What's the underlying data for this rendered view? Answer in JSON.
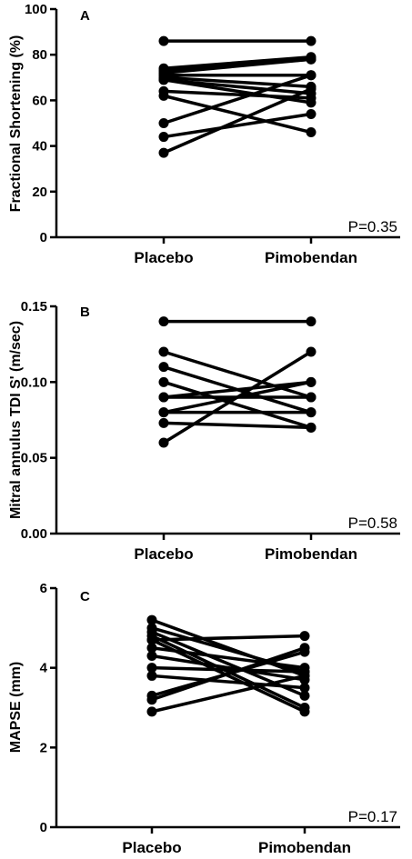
{
  "chart_data": [
    {
      "type": "line",
      "panel": "A",
      "ylabel": "Fractional Shortening (%)",
      "categories": [
        "Placebo",
        "Pimobendan"
      ],
      "ylim": [
        0,
        100
      ],
      "yticks": [
        "0",
        "20",
        "40",
        "60",
        "80",
        "100"
      ],
      "p_value": "P=0.35",
      "pairs": [
        [
          86,
          86
        ],
        [
          74,
          79
        ],
        [
          73,
          78
        ],
        [
          72,
          78
        ],
        [
          71,
          71
        ],
        [
          70,
          66
        ],
        [
          69,
          63
        ],
        [
          69,
          59
        ],
        [
          64,
          61
        ],
        [
          62,
          46
        ],
        [
          50,
          71
        ],
        [
          44,
          54
        ],
        [
          37,
          65
        ]
      ]
    },
    {
      "type": "line",
      "panel": "B",
      "ylabel": "Mitral annulus TDI S' (m/sec)",
      "categories": [
        "Placebo",
        "Pimobendan"
      ],
      "ylim": [
        0,
        0.15
      ],
      "yticks": [
        "0.00",
        "0.05",
        "0.10",
        "0.15"
      ],
      "p_value": "P=0.58",
      "pairs": [
        [
          0.14,
          0.14
        ],
        [
          0.12,
          0.09
        ],
        [
          0.11,
          0.08
        ],
        [
          0.1,
          0.07
        ],
        [
          0.09,
          0.1
        ],
        [
          0.09,
          0.09
        ],
        [
          0.08,
          0.1
        ],
        [
          0.08,
          0.08
        ],
        [
          0.073,
          0.07
        ],
        [
          0.06,
          0.12
        ]
      ]
    },
    {
      "type": "line",
      "panel": "C",
      "ylabel": "MAPSE (mm)",
      "categories": [
        "Placebo",
        "Pimobendan"
      ],
      "ylim": [
        0,
        6
      ],
      "yticks": [
        "0",
        "2",
        "4",
        "6"
      ],
      "p_value": "P=0.17",
      "pairs": [
        [
          5.2,
          3.8
        ],
        [
          5.0,
          3.9
        ],
        [
          4.9,
          3.3
        ],
        [
          4.8,
          3.0
        ],
        [
          4.7,
          4.8
        ],
        [
          4.7,
          2.9
        ],
        [
          4.5,
          4.0
        ],
        [
          4.3,
          3.7
        ],
        [
          4.0,
          3.9
        ],
        [
          3.8,
          3.5
        ],
        [
          3.3,
          4.4
        ],
        [
          3.2,
          4.5
        ],
        [
          2.9,
          3.8
        ]
      ]
    }
  ]
}
